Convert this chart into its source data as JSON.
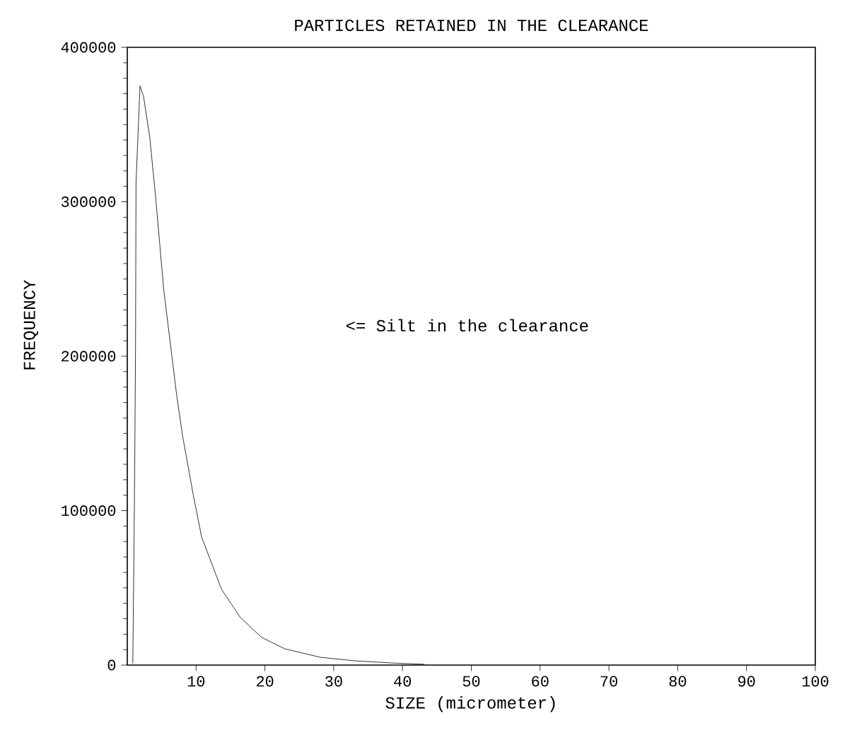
{
  "chart_data": {
    "type": "line",
    "title": "PARTICLES RETAINED IN THE CLEARANCE",
    "xlabel": "SIZE (micrometer)",
    "ylabel": "FREQUENCY",
    "annotations": [
      "<= Silt in the clearance"
    ],
    "series": [
      {
        "color": "#000000",
        "x": [
          0.8,
          1.0,
          1.1,
          1.2,
          1.27,
          1.85,
          2.37,
          3.26,
          4.1,
          5.3,
          7.2,
          8.05,
          9.6,
          10.8,
          13.7,
          16.4,
          19.5,
          22.9,
          28.1,
          33.2,
          38.3,
          43.2
        ],
        "values": [
          1000,
          87000,
          141000,
          205000,
          312000,
          375000,
          368000,
          342000,
          304000,
          243000,
          174000,
          148000,
          110000,
          83000,
          49000,
          31000,
          18000,
          10500,
          5000,
          2700,
          1400,
          500
        ]
      }
    ],
    "xlim": [
      0,
      100
    ],
    "ylim": [
      0,
      400000
    ],
    "xticks": [
      10,
      20,
      30,
      40,
      50,
      60,
      70,
      80,
      90,
      100
    ],
    "yticks": [
      0,
      100000,
      200000,
      300000,
      400000
    ],
    "grid": false,
    "legend": false,
    "marker": "none",
    "line_style": "solid"
  }
}
